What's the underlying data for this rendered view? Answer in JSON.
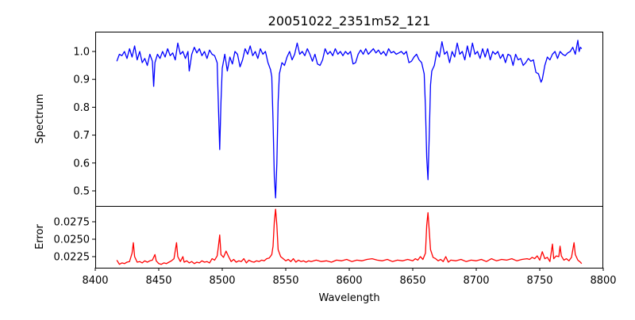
{
  "chart_data": [
    {
      "type": "line",
      "title": "20051022_2351m52_121",
      "xlabel": "",
      "ylabel": "Spectrum",
      "xlim": [
        8400,
        8800
      ],
      "ylim": [
        0.446,
        1.071
      ],
      "yticks": [
        0.5,
        0.6,
        0.7,
        0.8,
        0.9,
        1.0
      ],
      "ytick_labels": [
        "0.5",
        "0.6",
        "0.7",
        "0.8",
        "0.9",
        "1.0"
      ],
      "grid": false,
      "series": [
        {
          "name": "Spectrum",
          "color": "#0000ff",
          "x": [
            8417,
            8419,
            8421,
            8423,
            8425,
            8427,
            8429,
            8431,
            8433,
            8435,
            8437,
            8439,
            8441,
            8443,
            8445,
            8446,
            8447,
            8449,
            8451,
            8453,
            8455,
            8457,
            8459,
            8461,
            8463,
            8465,
            8467,
            8469,
            8471,
            8473,
            8474,
            8476,
            8478,
            8480,
            8482,
            8484,
            8486,
            8488,
            8490,
            8492,
            8494,
            8496,
            8497,
            8498,
            8499,
            8500,
            8502,
            8504,
            8506,
            8508,
            8510,
            8512,
            8514,
            8516,
            8518,
            8520,
            8522,
            8524,
            8526,
            8528,
            8530,
            8532,
            8534,
            8536,
            8538,
            8539,
            8540,
            8541,
            8542,
            8543,
            8544,
            8545,
            8547,
            8549,
            8551,
            8553,
            8555,
            8557,
            8559,
            8561,
            8563,
            8565,
            8567,
            8569,
            8571,
            8573,
            8575,
            8577,
            8579,
            8581,
            8583,
            8585,
            8587,
            8589,
            8591,
            8593,
            8595,
            8597,
            8599,
            8601,
            8603,
            8605,
            8607,
            8609,
            8611,
            8613,
            8615,
            8617,
            8619,
            8621,
            8623,
            8625,
            8627,
            8629,
            8631,
            8633,
            8635,
            8637,
            8639,
            8641,
            8643,
            8645,
            8647,
            8649,
            8651,
            8653,
            8655,
            8657,
            8659,
            8660,
            8661,
            8662,
            8663,
            8664,
            8665,
            8667,
            8669,
            8671,
            8673,
            8675,
            8677,
            8679,
            8681,
            8683,
            8685,
            8687,
            8689,
            8691,
            8693,
            8695,
            8697,
            8699,
            8701,
            8703,
            8705,
            8707,
            8709,
            8711,
            8713,
            8715,
            8717,
            8719,
            8721,
            8723,
            8725,
            8727,
            8729,
            8731,
            8733,
            8735,
            8737,
            8739,
            8741,
            8743,
            8745,
            8747,
            8749,
            8751,
            8752,
            8754,
            8756,
            8758,
            8760,
            8762,
            8764,
            8766,
            8768,
            8770,
            8772,
            8774,
            8776,
            8778,
            8780,
            8781,
            8782,
            8783
          ],
          "y": [
            0.965,
            0.99,
            0.985,
            1.0,
            0.975,
            1.01,
            0.98,
            1.02,
            0.97,
            1.0,
            0.96,
            0.975,
            0.95,
            0.99,
            0.965,
            0.875,
            0.96,
            0.99,
            0.975,
            1.0,
            0.98,
            1.01,
            0.985,
            0.995,
            0.97,
            1.03,
            0.99,
            1.0,
            0.975,
            1.0,
            0.93,
            0.99,
            1.015,
            0.995,
            1.01,
            0.985,
            1.0,
            0.975,
            1.005,
            0.99,
            0.985,
            0.96,
            0.8,
            0.648,
            0.82,
            0.94,
            0.99,
            0.93,
            0.98,
            0.955,
            1.0,
            0.99,
            0.945,
            0.97,
            1.01,
            0.99,
            1.02,
            0.985,
            1.0,
            0.975,
            1.01,
            0.99,
            1.0,
            0.96,
            0.935,
            0.91,
            0.75,
            0.55,
            0.475,
            0.6,
            0.82,
            0.92,
            0.96,
            0.95,
            0.98,
            1.0,
            0.97,
            0.99,
            1.03,
            0.99,
            1.0,
            0.985,
            1.01,
            0.99,
            0.965,
            0.99,
            0.955,
            0.95,
            0.97,
            1.01,
            0.99,
            1.0,
            0.985,
            1.01,
            0.99,
            1.0,
            0.985,
            1.0,
            0.99,
            1.0,
            0.955,
            0.96,
            0.99,
            1.005,
            0.99,
            1.01,
            0.99,
            1.0,
            1.01,
            0.995,
            1.005,
            0.99,
            1.0,
            0.985,
            1.01,
            0.995,
            1.0,
            0.99,
            0.995,
            1.0,
            0.99,
            1.0,
            0.96,
            0.965,
            0.98,
            0.99,
            0.97,
            0.96,
            0.92,
            0.8,
            0.62,
            0.54,
            0.7,
            0.88,
            0.93,
            0.95,
            1.0,
            0.98,
            1.035,
            0.99,
            1.0,
            0.96,
            1.0,
            0.98,
            1.03,
            0.99,
            1.0,
            0.97,
            1.02,
            0.98,
            1.03,
            0.99,
            1.0,
            0.975,
            1.01,
            0.98,
            1.01,
            0.97,
            1.0,
            0.99,
            1.0,
            0.975,
            0.99,
            0.96,
            0.99,
            0.985,
            0.95,
            0.99,
            0.97,
            0.975,
            0.95,
            0.96,
            0.975,
            0.965,
            0.97,
            0.925,
            0.92,
            0.89,
            0.9,
            0.95,
            0.98,
            0.97,
            0.99,
            1.0,
            0.975,
            1.0,
            0.99,
            0.985,
            0.995,
            1.0,
            1.015,
            0.99,
            1.04,
            1.0,
            1.015,
            1.01
          ]
        }
      ]
    },
    {
      "type": "line",
      "xlabel": "Wavelength",
      "ylabel": "Error",
      "xlim": [
        8400,
        8800
      ],
      "ylim": [
        0.02091,
        0.02977
      ],
      "xticks": [
        8400,
        8450,
        8500,
        8550,
        8600,
        8650,
        8700,
        8750,
        8800
      ],
      "xtick_labels": [
        "8400",
        "8450",
        "8500",
        "8550",
        "8600",
        "8650",
        "8700",
        "8750",
        "8800"
      ],
      "yticks": [
        0.0225,
        0.025,
        0.0275
      ],
      "ytick_labels": [
        "0.0225",
        "0.0250",
        "0.0275"
      ],
      "grid": false,
      "series": [
        {
          "name": "Error",
          "color": "#ff0000",
          "x": [
            8417,
            8419,
            8421,
            8423,
            8425,
            8427,
            8429,
            8430,
            8431,
            8433,
            8435,
            8437,
            8439,
            8441,
            8443,
            8445,
            8447,
            8448,
            8450,
            8452,
            8454,
            8456,
            8458,
            8460,
            8462,
            8464,
            8465,
            8467,
            8469,
            8470,
            8472,
            8474,
            8476,
            8478,
            8480,
            8482,
            8484,
            8486,
            8488,
            8490,
            8492,
            8494,
            8496,
            8497,
            8498,
            8499,
            8501,
            8503,
            8505,
            8507,
            8509,
            8511,
            8513,
            8515,
            8517,
            8519,
            8521,
            8523,
            8525,
            8527,
            8529,
            8531,
            8533,
            8535,
            8537,
            8539,
            8540,
            8541,
            8542,
            8543,
            8544,
            8546,
            8548,
            8550,
            8552,
            8554,
            8556,
            8558,
            8560,
            8562,
            8564,
            8566,
            8568,
            8570,
            8574,
            8578,
            8582,
            8586,
            8590,
            8594,
            8598,
            8602,
            8606,
            8610,
            8614,
            8618,
            8622,
            8626,
            8630,
            8634,
            8638,
            8642,
            8646,
            8650,
            8652,
            8654,
            8656,
            8658,
            8660,
            8661,
            8662,
            8663,
            8664,
            8666,
            8668,
            8670,
            8672,
            8674,
            8676,
            8678,
            8680,
            8684,
            8688,
            8692,
            8696,
            8700,
            8704,
            8708,
            8712,
            8716,
            8720,
            8724,
            8728,
            8732,
            8736,
            8740,
            8742,
            8744,
            8746,
            8748,
            8750,
            8752,
            8754,
            8756,
            8758,
            8760,
            8761,
            8763,
            8765,
            8766,
            8767,
            8769,
            8771,
            8773,
            8775,
            8777,
            8778,
            8780,
            8782,
            8783
          ],
          "y": [
            0.022,
            0.0214,
            0.0216,
            0.0215,
            0.0217,
            0.0218,
            0.023,
            0.0245,
            0.0225,
            0.0217,
            0.0218,
            0.0216,
            0.0219,
            0.0217,
            0.0219,
            0.022,
            0.0228,
            0.0219,
            0.0215,
            0.0214,
            0.0216,
            0.0215,
            0.0217,
            0.0219,
            0.0222,
            0.0245,
            0.0225,
            0.0218,
            0.0225,
            0.0217,
            0.0219,
            0.0216,
            0.0218,
            0.0215,
            0.0217,
            0.0216,
            0.0219,
            0.0217,
            0.0218,
            0.0216,
            0.0222,
            0.022,
            0.0226,
            0.024,
            0.0256,
            0.0228,
            0.0224,
            0.0233,
            0.0225,
            0.0218,
            0.0221,
            0.0217,
            0.0219,
            0.0218,
            0.0222,
            0.0216,
            0.022,
            0.0218,
            0.0217,
            0.0219,
            0.0218,
            0.022,
            0.0219,
            0.0222,
            0.0223,
            0.0228,
            0.024,
            0.0275,
            0.0293,
            0.027,
            0.0235,
            0.0225,
            0.0222,
            0.0219,
            0.0221,
            0.0218,
            0.0222,
            0.0217,
            0.022,
            0.0218,
            0.0219,
            0.0217,
            0.0219,
            0.0218,
            0.022,
            0.0218,
            0.0219,
            0.0217,
            0.022,
            0.0219,
            0.0221,
            0.0218,
            0.022,
            0.0219,
            0.0221,
            0.0222,
            0.022,
            0.0219,
            0.0221,
            0.0218,
            0.022,
            0.0219,
            0.0221,
            0.0219,
            0.0222,
            0.022,
            0.0225,
            0.0221,
            0.023,
            0.027,
            0.0288,
            0.0262,
            0.0235,
            0.0224,
            0.0222,
            0.0219,
            0.0221,
            0.0218,
            0.0225,
            0.0217,
            0.022,
            0.0219,
            0.0221,
            0.0218,
            0.022,
            0.0219,
            0.0221,
            0.0218,
            0.0222,
            0.0219,
            0.0221,
            0.022,
            0.0222,
            0.0219,
            0.0221,
            0.0222,
            0.0221,
            0.0224,
            0.0222,
            0.0226,
            0.022,
            0.0232,
            0.0222,
            0.0224,
            0.0218,
            0.0243,
            0.0222,
            0.0226,
            0.0225,
            0.024,
            0.0226,
            0.022,
            0.0222,
            0.0219,
            0.0224,
            0.0245,
            0.0228,
            0.022,
            0.0217,
            0.0215
          ]
        }
      ]
    }
  ]
}
